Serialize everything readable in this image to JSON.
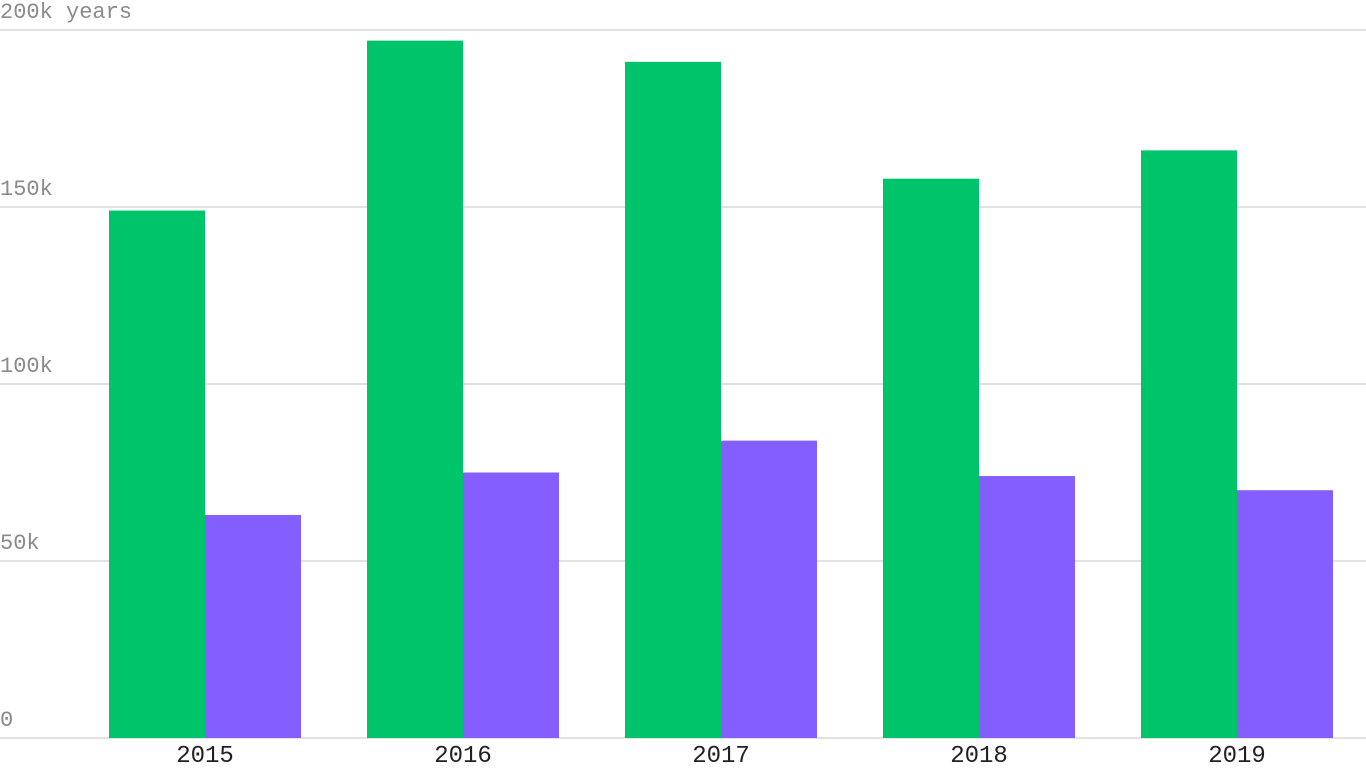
{
  "chart_data": {
    "type": "bar",
    "categories": [
      "2015",
      "2016",
      "2017",
      "2018",
      "2019"
    ],
    "series": [
      {
        "color": "#00c46a",
        "values": [
          149000,
          197000,
          191000,
          158000,
          166000
        ]
      },
      {
        "color": "#845eff",
        "values": [
          63000,
          75000,
          84000,
          74000,
          70000
        ]
      }
    ],
    "ylim": [
      0,
      200000
    ],
    "yticks": [
      0,
      {
        "value": 50000,
        "label": "50k"
      },
      {
        "value": 100000,
        "label": "100k"
      },
      {
        "value": 150000,
        "label": "150k"
      },
      {
        "value": 200000,
        "label": "200k years"
      }
    ],
    "grid": true
  }
}
